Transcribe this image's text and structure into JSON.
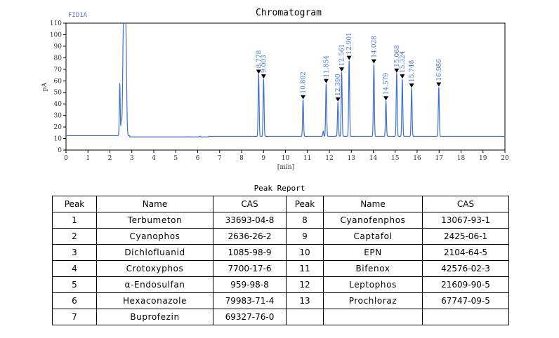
{
  "chart_data": {
    "type": "line",
    "title": "Chromatogram",
    "signal_label": "FID1A",
    "xlabel": "[min]",
    "ylabel": "pA",
    "xlim": [
      0,
      20
    ],
    "ylim": [
      0,
      110
    ],
    "xticks": [
      0,
      1,
      2,
      3,
      4,
      5,
      6,
      7,
      8,
      9,
      10,
      11,
      12,
      13,
      14,
      15,
      16,
      17,
      18,
      19,
      20
    ],
    "yticks": [
      0,
      10,
      20,
      30,
      40,
      50,
      60,
      70,
      80,
      90,
      100,
      110
    ],
    "baseline": 12.5,
    "line_color": "#3d6fd6",
    "peaks": [
      {
        "rt": 8.778,
        "label": "8.778",
        "height": 66
      },
      {
        "rt": 9.003,
        "label": "9.003",
        "height": 62
      },
      {
        "rt": 10.802,
        "label": "10.802",
        "height": 44
      },
      {
        "rt": 11.854,
        "label": "11.854",
        "height": 58
      },
      {
        "rt": 12.39,
        "label": "12.390",
        "height": 42
      },
      {
        "rt": 12.561,
        "label": "12.561",
        "height": 68
      },
      {
        "rt": 12.901,
        "label": "12.901",
        "height": 78
      },
      {
        "rt": 14.028,
        "label": "14.028",
        "height": 75
      },
      {
        "rt": 14.579,
        "label": "14.579",
        "height": 43
      },
      {
        "rt": 15.068,
        "label": "15.068",
        "height": 67
      },
      {
        "rt": 15.324,
        "label": "15.324",
        "height": 62
      },
      {
        "rt": 15.748,
        "label": "15.748",
        "height": 54
      },
      {
        "rt": 16.986,
        "label": "16.986",
        "height": 55
      }
    ],
    "unlabeled_features": [
      {
        "rt": 2.45,
        "height": 58
      },
      {
        "rt": 2.52,
        "height": 24
      },
      {
        "rt": 2.62,
        "height": 110
      },
      {
        "rt": 2.72,
        "height": 110
      },
      {
        "rt": 11.72,
        "height": 17
      },
      {
        "rt": 6.1,
        "height": 13.2
      },
      {
        "rt": 5.6,
        "height": 12.8
      }
    ]
  },
  "report": {
    "title": "Peak Report",
    "headers": {
      "peak": "Peak",
      "name": "Name",
      "cas": "CAS"
    },
    "rows": [
      {
        "left": {
          "peak": "1",
          "name": "Terbumeton",
          "cas": "33693-04-8"
        },
        "right": {
          "peak": "8",
          "name": "Cyanofenphos",
          "cas": "13067-93-1"
        }
      },
      {
        "left": {
          "peak": "2",
          "name": "Cyanophos",
          "cas": "2636-26-2"
        },
        "right": {
          "peak": "9",
          "name": "Captafol",
          "cas": "2425-06-1"
        }
      },
      {
        "left": {
          "peak": "3",
          "name": "Dichlofluanid",
          "cas": "1085-98-9"
        },
        "right": {
          "peak": "10",
          "name": "EPN",
          "cas": "2104-64-5"
        }
      },
      {
        "left": {
          "peak": "4",
          "name": "Crotoxyphos",
          "cas": "7700-17-6"
        },
        "right": {
          "peak": "11",
          "name": "Bifenox",
          "cas": "42576-02-3"
        }
      },
      {
        "left": {
          "peak": "5",
          "name": "α-Endosulfan",
          "cas": "959-98-8"
        },
        "right": {
          "peak": "12",
          "name": "Leptophos",
          "cas": "21609-90-5"
        }
      },
      {
        "left": {
          "peak": "6",
          "name": "Hexaconazole",
          "cas": "79983-71-4"
        },
        "right": {
          "peak": "13",
          "name": "Prochloraz",
          "cas": "67747-09-5"
        }
      },
      {
        "left": {
          "peak": "7",
          "name": "Buprofezin",
          "cas": "69327-76-0"
        },
        "right": {
          "peak": "",
          "name": "",
          "cas": ""
        }
      }
    ]
  }
}
